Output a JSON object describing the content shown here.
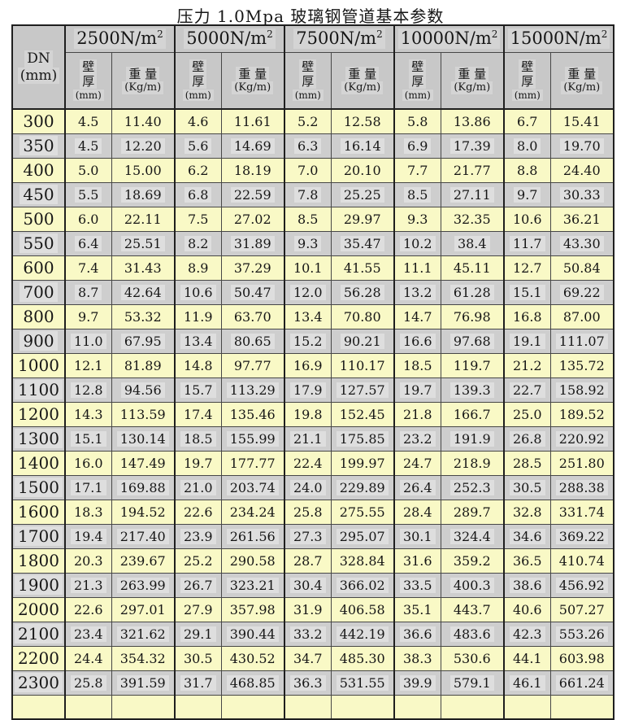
{
  "title": "压力 1.0Mpa 玻璃钢管道基本参数",
  "colors": {
    "row_yellow": "#f9f9c6",
    "row_gray": "#cecece",
    "header_gray": "#c8c8c8"
  },
  "table": {
    "dn_header": {
      "line1": "DN",
      "line2": "(mm)"
    },
    "load_groups": [
      "2500",
      "5000",
      "7500",
      "10000",
      "15000"
    ],
    "load_unit": "N/m",
    "load_unit_sup": "2",
    "sub_headers": {
      "wall_line1": "壁",
      "wall_line2": "厚",
      "wall_unit": "(mm)",
      "weight_label": "重 量",
      "weight_unit": "(Kg/m)"
    },
    "rows": [
      {
        "dn": "300",
        "values": [
          "4.5",
          "11.40",
          "4.6",
          "11.61",
          "5.2",
          "12.58",
          "5.8",
          "13.86",
          "6.7",
          "15.41"
        ]
      },
      {
        "dn": "350",
        "values": [
          "4.5",
          "12.20",
          "5.6",
          "14.69",
          "6.3",
          "16.14",
          "6.9",
          "17.39",
          "8.0",
          "19.70"
        ]
      },
      {
        "dn": "400",
        "values": [
          "5.0",
          "15.00",
          "6.2",
          "18.19",
          "7.0",
          "20.10",
          "7.7",
          "21.77",
          "8.8",
          "24.40"
        ]
      },
      {
        "dn": "450",
        "values": [
          "5.5",
          "18.69",
          "6.8",
          "22.59",
          "7.8",
          "25.25",
          "8.5",
          "27.11",
          "9.7",
          "30.33"
        ]
      },
      {
        "dn": "500",
        "values": [
          "6.0",
          "22.11",
          "7.5",
          "27.02",
          "8.5",
          "29.97",
          "9.3",
          "32.35",
          "10.6",
          "36.21"
        ]
      },
      {
        "dn": "550",
        "values": [
          "6.4",
          "25.51",
          "8.2",
          "31.89",
          "9.3",
          "35.47",
          "10.2",
          "38.4",
          "11.7",
          "43.30"
        ]
      },
      {
        "dn": "600",
        "values": [
          "7.4",
          "31.43",
          "8.9",
          "37.29",
          "10.1",
          "41.55",
          "11.1",
          "45.11",
          "12.7",
          "50.84"
        ]
      },
      {
        "dn": "700",
        "values": [
          "8.7",
          "42.64",
          "10.6",
          "50.47",
          "12.0",
          "56.28",
          "13.2",
          "61.28",
          "15.1",
          "69.22"
        ]
      },
      {
        "dn": "800",
        "values": [
          "9.7",
          "53.32",
          "11.9",
          "63.70",
          "13.4",
          "70.80",
          "14.7",
          "76.98",
          "16.8",
          "87.00"
        ]
      },
      {
        "dn": "900",
        "values": [
          "11.0",
          "67.95",
          "13.4",
          "80.65",
          "15.2",
          "90.21",
          "16.6",
          "97.68",
          "19.1",
          "111.07"
        ]
      },
      {
        "dn": "1000",
        "values": [
          "12.1",
          "81.89",
          "14.8",
          "97.77",
          "16.9",
          "110.17",
          "18.5",
          "119.7",
          "21.2",
          "135.72"
        ]
      },
      {
        "dn": "1100",
        "values": [
          "12.8",
          "94.56",
          "15.7",
          "113.29",
          "17.9",
          "127.57",
          "19.7",
          "139.3",
          "22.7",
          "158.92"
        ]
      },
      {
        "dn": "1200",
        "values": [
          "14.3",
          "113.59",
          "17.4",
          "135.46",
          "19.8",
          "152.45",
          "21.8",
          "166.7",
          "25.0",
          "189.52"
        ]
      },
      {
        "dn": "1300",
        "values": [
          "15.1",
          "130.14",
          "18.5",
          "155.99",
          "21.1",
          "175.85",
          "23.2",
          "191.9",
          "26.8",
          "220.92"
        ]
      },
      {
        "dn": "1400",
        "values": [
          "16.0",
          "147.49",
          "19.7",
          "177.77",
          "22.4",
          "199.97",
          "24.7",
          "218.9",
          "28.5",
          "251.80"
        ]
      },
      {
        "dn": "1500",
        "values": [
          "17.1",
          "169.88",
          "21.0",
          "203.74",
          "24.0",
          "229.89",
          "26.4",
          "252.3",
          "30.5",
          "288.38"
        ]
      },
      {
        "dn": "1600",
        "values": [
          "18.3",
          "194.52",
          "22.6",
          "234.24",
          "25.8",
          "275.55",
          "28.4",
          "289.7",
          "32.8",
          "331.74"
        ]
      },
      {
        "dn": "1700",
        "values": [
          "19.4",
          "217.40",
          "23.9",
          "261.56",
          "27.3",
          "295.07",
          "30.1",
          "324.4",
          "34.6",
          "369.22"
        ]
      },
      {
        "dn": "1800",
        "values": [
          "20.3",
          "239.67",
          "25.2",
          "290.58",
          "28.7",
          "328.84",
          "31.6",
          "359.2",
          "36.5",
          "410.74"
        ]
      },
      {
        "dn": "1900",
        "values": [
          "21.3",
          "263.99",
          "26.7",
          "323.21",
          "30.4",
          "366.02",
          "33.5",
          "400.3",
          "38.6",
          "456.92"
        ]
      },
      {
        "dn": "2000",
        "values": [
          "22.6",
          "297.01",
          "27.9",
          "357.98",
          "31.9",
          "406.58",
          "35.1",
          "443.7",
          "40.6",
          "507.27"
        ]
      },
      {
        "dn": "2100",
        "values": [
          "23.4",
          "321.62",
          "29.1",
          "390.44",
          "33.2",
          "442.19",
          "36.6",
          "483.6",
          "42.3",
          "553.26"
        ]
      },
      {
        "dn": "2200",
        "values": [
          "24.4",
          "354.32",
          "30.5",
          "430.52",
          "34.7",
          "485.30",
          "38.3",
          "530.6",
          "44.1",
          "603.98"
        ]
      },
      {
        "dn": "2300",
        "values": [
          "25.8",
          "391.59",
          "31.7",
          "468.85",
          "36.3",
          "531.55",
          "39.9",
          "579.1",
          "46.1",
          "661.24"
        ]
      }
    ]
  }
}
